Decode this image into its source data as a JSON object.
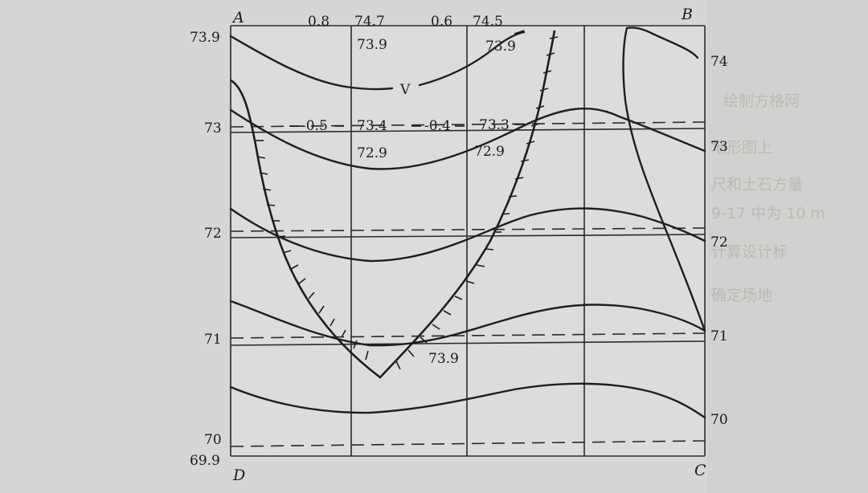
{
  "diagram": {
    "corners": {
      "a": "A",
      "b": "B",
      "c": "C",
      "d": "D"
    },
    "left_labels": [
      "73.9",
      "73",
      "72",
      "71",
      "70",
      "69.9"
    ],
    "right_labels": [
      "74",
      "73",
      "72",
      "71",
      "70"
    ],
    "top_labels": [
      "0.8",
      "74.7",
      "0.6",
      "74.5"
    ],
    "mid_labels": [
      "-0.5",
      "73.4",
      "-0.4",
      "73.3"
    ],
    "grid_values": [
      "73.9",
      "73.9",
      "72.9",
      "72.9",
      "73.9"
    ],
    "v_label": "V"
  },
  "background_text": [
    "绘制方格网",
    "地形图上",
    "尺和土石方量",
    "9-17 中为 10 m",
    "计算设计标",
    "确定场地"
  ]
}
